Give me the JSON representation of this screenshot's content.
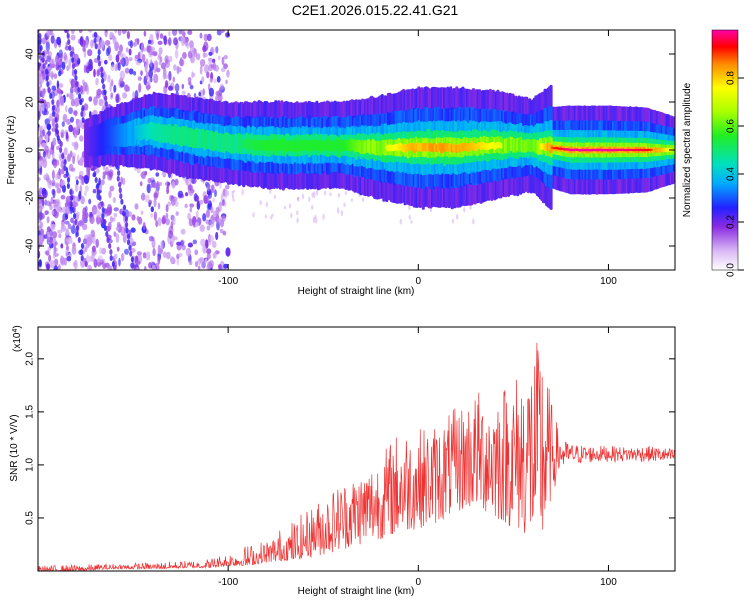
{
  "title": "C2E1.2026.015.22.41.G21",
  "chart_data": [
    {
      "type": "heatmap",
      "xlabel": "Height of straight line (km)",
      "ylabel": "Frequency (Hz)",
      "xlim": [
        -200,
        135
      ],
      "ylim": [
        -50,
        50
      ],
      "xticks": [
        -100,
        0,
        100
      ],
      "yticks": [
        -40,
        -20,
        0,
        20,
        40
      ],
      "colorbar": {
        "label": "Normalized spectral amplitude",
        "range": [
          0.0,
          1.0
        ],
        "ticks": [
          "0.0",
          "0.2",
          "0.4",
          "0.6",
          "0.8"
        ]
      },
      "ridge": {
        "x": [
          -175,
          -160,
          -140,
          -125,
          -110,
          -100,
          -80,
          -60,
          -40,
          -20,
          0,
          20,
          40,
          60,
          70,
          80,
          100,
          120,
          135
        ],
        "freq_hz": [
          3,
          6,
          8,
          6,
          4,
          3,
          2,
          2,
          2,
          1,
          1,
          1,
          2,
          2,
          1,
          0,
          0,
          0,
          0
        ],
        "peak_amplitude": [
          0.2,
          0.3,
          0.45,
          0.5,
          0.5,
          0.5,
          0.55,
          0.55,
          0.55,
          0.7,
          0.85,
          0.85,
          0.75,
          0.6,
          0.9,
          1.0,
          1.0,
          0.95,
          0.7
        ]
      }
    },
    {
      "type": "line",
      "xlabel": "Height of straight line (km)",
      "ylabel": "SNR (10 * V/V)",
      "multiplier": "(x10",
      "multiplier_exp": "4",
      "multiplier_close": ")",
      "xlim": [
        -200,
        135
      ],
      "ylim": [
        0,
        2.3
      ],
      "xticks": [
        -100,
        0,
        100
      ],
      "yticks": [
        "0.5",
        "1.0",
        "1.5",
        "2.0"
      ],
      "color": "#ee3333",
      "series": [
        {
          "name": "SNR",
          "x": [
            -200,
            -180,
            -160,
            -140,
            -120,
            -110,
            -100,
            -90,
            -80,
            -70,
            -60,
            -50,
            -40,
            -30,
            -20,
            -10,
            0,
            10,
            20,
            30,
            40,
            50,
            60,
            65,
            70,
            75,
            80,
            90,
            100,
            110,
            120,
            135
          ],
          "envelope_low": [
            0.0,
            0.0,
            0.02,
            0.02,
            0.03,
            0.03,
            0.05,
            0.05,
            0.08,
            0.1,
            0.12,
            0.15,
            0.2,
            0.25,
            0.3,
            0.35,
            0.4,
            0.45,
            0.55,
            0.6,
            0.5,
            0.4,
            0.3,
            0.2,
            0.7,
            0.95,
            1.0,
            1.02,
            1.03,
            1.03,
            1.03,
            1.02
          ],
          "envelope_high": [
            0.05,
            0.06,
            0.07,
            0.08,
            0.1,
            0.12,
            0.18,
            0.25,
            0.3,
            0.45,
            0.55,
            0.7,
            0.85,
            0.95,
            1.1,
            1.35,
            1.35,
            1.4,
            1.55,
            1.7,
            1.75,
            1.85,
            2.1,
            2.25,
            1.6,
            1.25,
            1.2,
            1.18,
            1.18,
            1.17,
            1.18,
            1.15
          ]
        }
      ]
    }
  ]
}
